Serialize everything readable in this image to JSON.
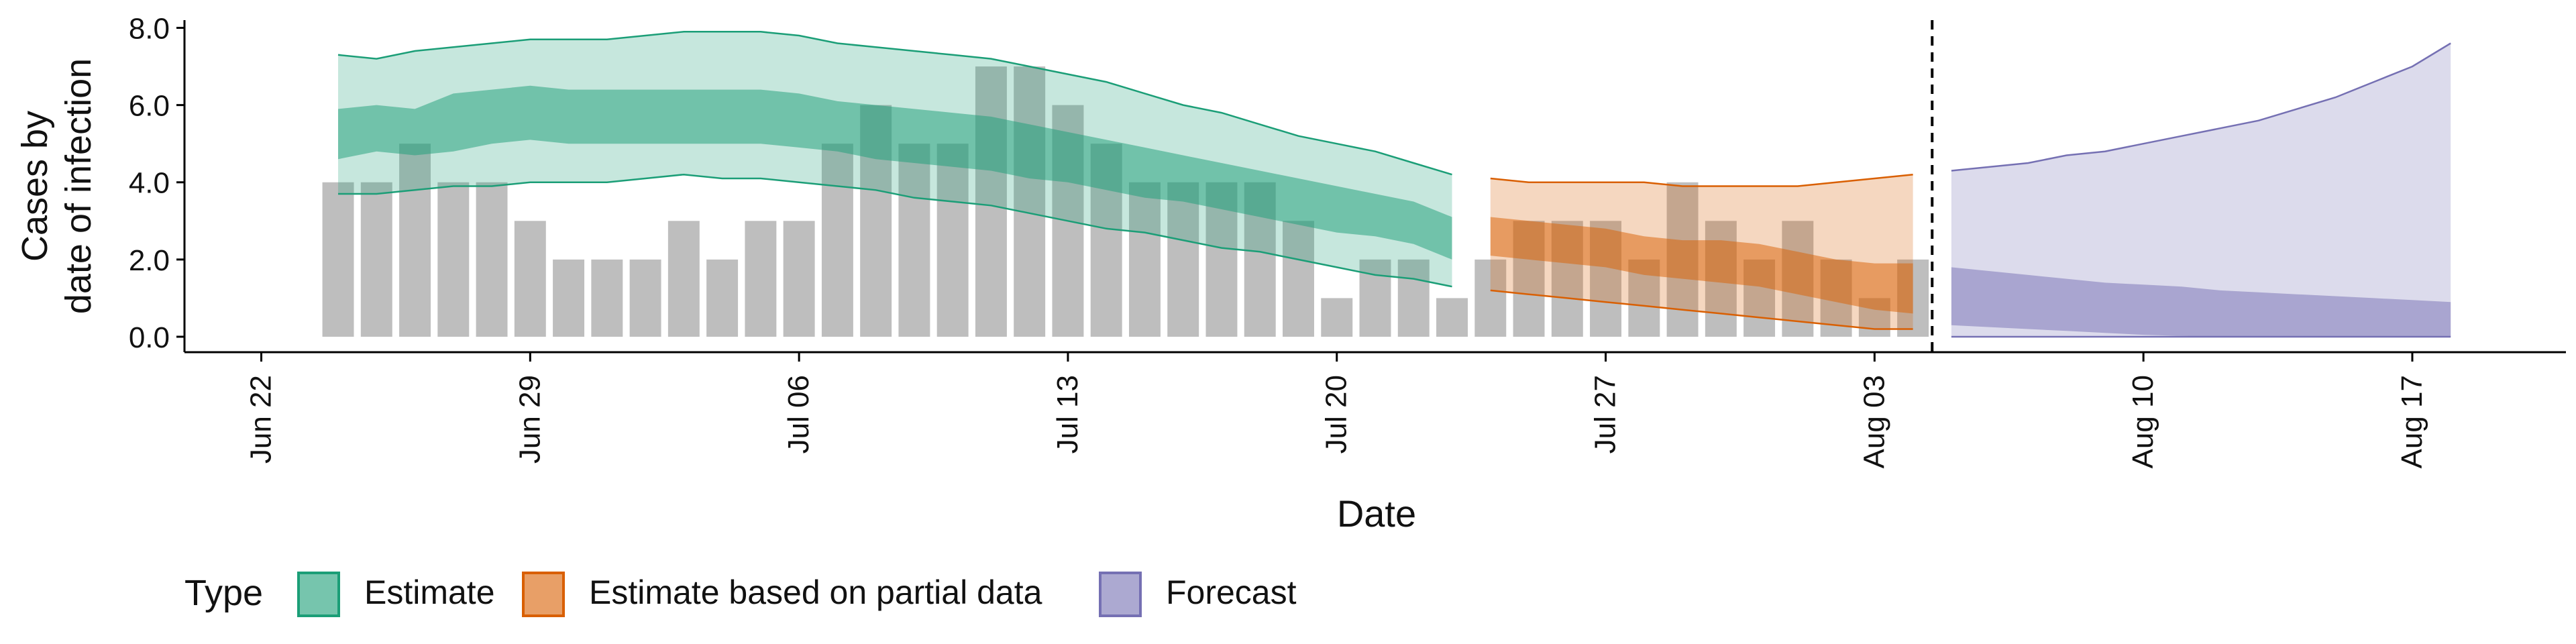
{
  "chart_data": {
    "type": "bar",
    "xlabel": "Date",
    "ylabel_lines": [
      "Cases by",
      "date of infection"
    ],
    "ylim": [
      -0.4,
      8.2
    ],
    "yticks": [
      0,
      2,
      4,
      6,
      8
    ],
    "ytick_labels": [
      "0.0",
      "2.0",
      "4.0",
      "6.0",
      "8.0"
    ],
    "xlim": [
      "2020-06-20",
      "2020-08-21"
    ],
    "xticks": [
      "2020-06-22",
      "2020-06-29",
      "2020-07-06",
      "2020-07-13",
      "2020-07-20",
      "2020-07-27",
      "2020-08-03",
      "2020-08-10",
      "2020-08-17"
    ],
    "xtick_labels": [
      "Jun 22",
      "Jun 29",
      "Jul 06",
      "Jul 13",
      "Jul 20",
      "Jul 27",
      "Aug 03",
      "Aug 10",
      "Aug 17"
    ],
    "reference_line_date": "2020-08-04",
    "bars": {
      "color": "#bebebe",
      "dates": [
        "2020-06-24",
        "2020-06-25",
        "2020-06-26",
        "2020-06-27",
        "2020-06-28",
        "2020-06-29",
        "2020-06-30",
        "2020-07-01",
        "2020-07-02",
        "2020-07-03",
        "2020-07-04",
        "2020-07-05",
        "2020-07-06",
        "2020-07-07",
        "2020-07-08",
        "2020-07-09",
        "2020-07-10",
        "2020-07-11",
        "2020-07-12",
        "2020-07-13",
        "2020-07-14",
        "2020-07-15",
        "2020-07-16",
        "2020-07-17",
        "2020-07-18",
        "2020-07-19",
        "2020-07-20",
        "2020-07-21",
        "2020-07-22",
        "2020-07-23",
        "2020-07-24",
        "2020-07-25",
        "2020-07-26",
        "2020-07-27",
        "2020-07-28",
        "2020-07-29",
        "2020-07-30",
        "2020-07-31",
        "2020-08-01",
        "2020-08-02",
        "2020-08-03",
        "2020-08-04"
      ],
      "values": [
        4,
        4,
        5,
        4,
        4,
        3,
        2,
        2,
        2,
        3,
        2,
        3,
        3,
        5,
        6,
        5,
        5,
        7,
        7,
        6,
        5,
        4,
        4,
        4,
        4,
        3,
        1,
        2,
        2,
        1,
        2,
        3,
        3,
        3,
        2,
        4,
        3,
        2,
        3,
        2,
        1,
        2
      ]
    },
    "series": [
      {
        "name": "Estimate",
        "color": "#1b9e77",
        "dates": [
          "2020-06-24",
          "2020-06-25",
          "2020-06-26",
          "2020-06-27",
          "2020-06-28",
          "2020-06-29",
          "2020-06-30",
          "2020-07-01",
          "2020-07-02",
          "2020-07-03",
          "2020-07-04",
          "2020-07-05",
          "2020-07-06",
          "2020-07-07",
          "2020-07-08",
          "2020-07-09",
          "2020-07-10",
          "2020-07-11",
          "2020-07-12",
          "2020-07-13",
          "2020-07-14",
          "2020-07-15",
          "2020-07-16",
          "2020-07-17",
          "2020-07-18",
          "2020-07-19",
          "2020-07-20",
          "2020-07-21",
          "2020-07-22",
          "2020-07-23"
        ],
        "upper90": [
          7.3,
          7.2,
          7.4,
          7.5,
          7.6,
          7.7,
          7.7,
          7.7,
          7.8,
          7.9,
          7.9,
          7.9,
          7.8,
          7.6,
          7.5,
          7.4,
          7.3,
          7.2,
          7.0,
          6.8,
          6.6,
          6.3,
          6.0,
          5.8,
          5.5,
          5.2,
          5.0,
          4.8,
          4.5,
          4.2
        ],
        "upper50": [
          5.9,
          6.0,
          5.9,
          6.3,
          6.4,
          6.5,
          6.4,
          6.4,
          6.4,
          6.4,
          6.4,
          6.4,
          6.3,
          6.1,
          6.0,
          5.9,
          5.8,
          5.7,
          5.5,
          5.3,
          5.1,
          4.9,
          4.7,
          4.5,
          4.3,
          4.1,
          3.9,
          3.7,
          3.5,
          3.1
        ],
        "lower50": [
          4.6,
          4.8,
          4.7,
          4.8,
          5.0,
          5.1,
          5.0,
          5.0,
          5.0,
          5.0,
          5.0,
          5.0,
          4.9,
          4.8,
          4.6,
          4.5,
          4.4,
          4.3,
          4.1,
          4.0,
          3.8,
          3.6,
          3.5,
          3.3,
          3.1,
          2.9,
          2.7,
          2.6,
          2.4,
          2.0
        ],
        "lower90": [
          3.7,
          3.7,
          3.8,
          3.9,
          3.9,
          4.0,
          4.0,
          4.0,
          4.1,
          4.2,
          4.1,
          4.1,
          4.0,
          3.9,
          3.8,
          3.6,
          3.5,
          3.4,
          3.2,
          3.0,
          2.8,
          2.7,
          2.5,
          2.3,
          2.2,
          2.0,
          1.8,
          1.6,
          1.5,
          1.3
        ]
      },
      {
        "name": "Estimate based on partial data",
        "color": "#d95f02",
        "dates": [
          "2020-07-24",
          "2020-07-25",
          "2020-07-26",
          "2020-07-27",
          "2020-07-28",
          "2020-07-29",
          "2020-07-30",
          "2020-07-31",
          "2020-08-01",
          "2020-08-02",
          "2020-08-03",
          "2020-08-04"
        ],
        "upper90": [
          4.1,
          4.0,
          4.0,
          4.0,
          4.0,
          3.9,
          3.9,
          3.9,
          3.9,
          4.0,
          4.1,
          4.2
        ],
        "upper50": [
          3.1,
          3.0,
          2.9,
          2.8,
          2.6,
          2.5,
          2.5,
          2.4,
          2.2,
          2.0,
          1.9,
          1.9
        ],
        "lower50": [
          2.1,
          2.0,
          1.9,
          1.8,
          1.6,
          1.5,
          1.4,
          1.3,
          1.1,
          0.9,
          0.7,
          0.6
        ],
        "lower90": [
          1.2,
          1.1,
          1.0,
          0.9,
          0.8,
          0.7,
          0.6,
          0.5,
          0.4,
          0.3,
          0.2,
          0.2
        ]
      },
      {
        "name": "Forecast",
        "color": "#7570b3",
        "dates": [
          "2020-08-05",
          "2020-08-06",
          "2020-08-07",
          "2020-08-08",
          "2020-08-09",
          "2020-08-10",
          "2020-08-11",
          "2020-08-12",
          "2020-08-13",
          "2020-08-14",
          "2020-08-15",
          "2020-08-16",
          "2020-08-17",
          "2020-08-18"
        ],
        "upper90": [
          4.3,
          4.4,
          4.5,
          4.7,
          4.8,
          5.0,
          5.2,
          5.4,
          5.6,
          5.9,
          6.2,
          6.6,
          7.0,
          7.6
        ],
        "upper50": [
          1.8,
          1.7,
          1.6,
          1.5,
          1.4,
          1.35,
          1.3,
          1.2,
          1.15,
          1.1,
          1.05,
          1.0,
          0.95,
          0.9
        ],
        "lower50": [
          0.3,
          0.25,
          0.2,
          0.15,
          0.1,
          0.05,
          0.02,
          0.0,
          0.0,
          0.0,
          0.0,
          0.0,
          0.0,
          0.0
        ],
        "lower90": [
          0.0,
          0.0,
          0.0,
          0.0,
          0.0,
          0.0,
          0.0,
          0.0,
          0.0,
          0.0,
          0.0,
          0.0,
          0.0,
          0.0
        ]
      }
    ],
    "legend": {
      "title": "Type",
      "placement": "bottom",
      "items": [
        "Estimate",
        "Estimate based on partial data",
        "Forecast"
      ]
    },
    "grid": false
  }
}
